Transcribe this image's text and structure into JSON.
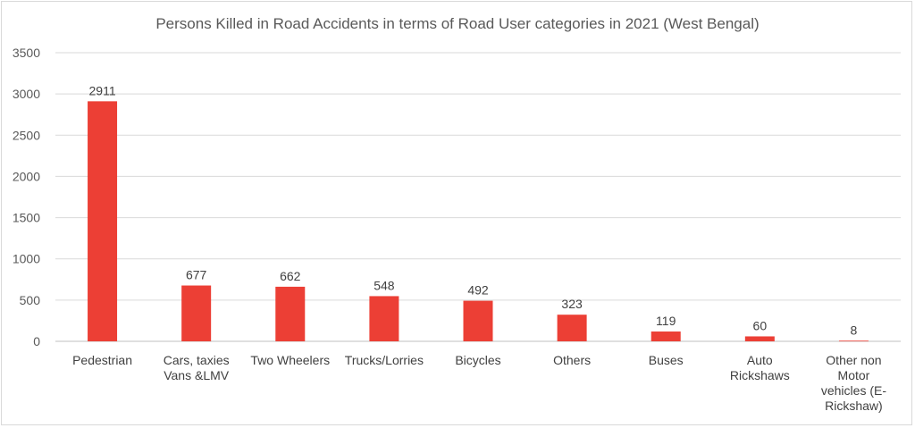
{
  "chart_data": {
    "type": "bar",
    "title": "Persons Killed  in Road Accidents in terms of Road User categories in 2021 (West Bengal)",
    "xlabel": "",
    "ylabel": "",
    "ylim": [
      0,
      3500
    ],
    "yticks": [
      0,
      500,
      1000,
      1500,
      2000,
      2500,
      3000,
      3500
    ],
    "grid": true,
    "bar_color": "#ec3f35",
    "categories": [
      [
        "Pedestrian"
      ],
      [
        "Cars, taxies",
        "Vans &LMV"
      ],
      [
        "Two Wheelers"
      ],
      [
        "Trucks/Lorries"
      ],
      [
        "Bicycles"
      ],
      [
        "Others"
      ],
      [
        "Buses"
      ],
      [
        "Auto",
        "Rickshaws"
      ],
      [
        "Other non",
        "Motor",
        "vehicles (E-",
        "Rickshaw)"
      ]
    ],
    "values": [
      2911,
      677,
      662,
      548,
      492,
      323,
      119,
      60,
      8
    ]
  }
}
